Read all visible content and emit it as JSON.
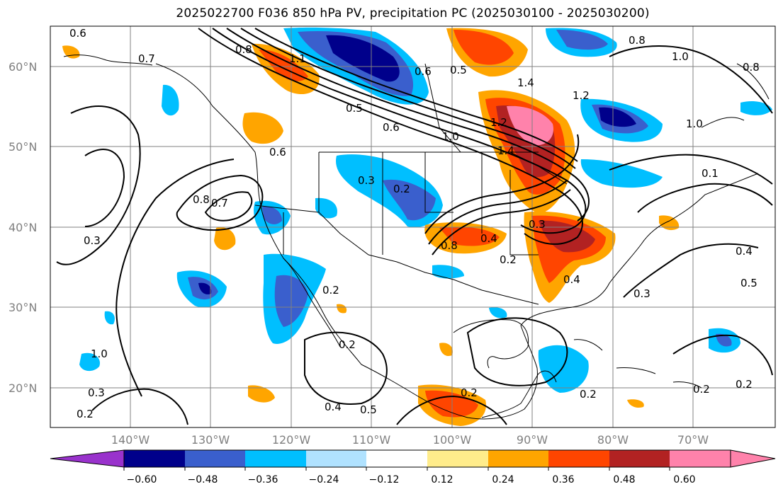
{
  "title": "2025022700 F036 850 hPa PV, precipitation PC (2025030100 - 2025030200)",
  "lat_labels": [
    "60°N",
    "50°N",
    "40°N",
    "30°N",
    "20°N"
  ],
  "lon_labels": [
    "140°W",
    "130°W",
    "120°W",
    "110°W",
    "100°W",
    "90°W",
    "80°W",
    "70°W"
  ],
  "colorbar": {
    "tick_labels": [
      "−0.60",
      "−0.48",
      "−0.36",
      "−0.24",
      "−0.12",
      "0.12",
      "0.24",
      "0.36",
      "0.48",
      "0.60"
    ],
    "colors": [
      "#9932cc",
      "#00008b",
      "#3a5fcd",
      "#00bfff",
      "#b0e2ff",
      "#ffffff",
      "#ffec8b",
      "#ffa500",
      "#ff4500",
      "#b22222",
      "#ff82ab"
    ]
  },
  "contour_labels": [
    "0.6",
    "0.7",
    "0.8",
    "1.1",
    "0.6",
    "0.5",
    "1.4",
    "1.2",
    "1.0",
    "0.8",
    "1.0",
    "0.5",
    "0.6",
    "1.0",
    "1.2",
    "1.4",
    "0.6",
    "0.3",
    "0.2",
    "0.8",
    "0.7",
    "0.3",
    "0.8",
    "0.4",
    "0.2",
    "0.3",
    "0.4",
    "0.3",
    "0.5",
    "0.2",
    "0.2",
    "0.3",
    "0.2",
    "0.4",
    "0.5",
    "0.2",
    "0.2",
    "0.2",
    "0.2",
    "0.4",
    "0.1",
    "1.0",
    "0.8"
  ]
}
